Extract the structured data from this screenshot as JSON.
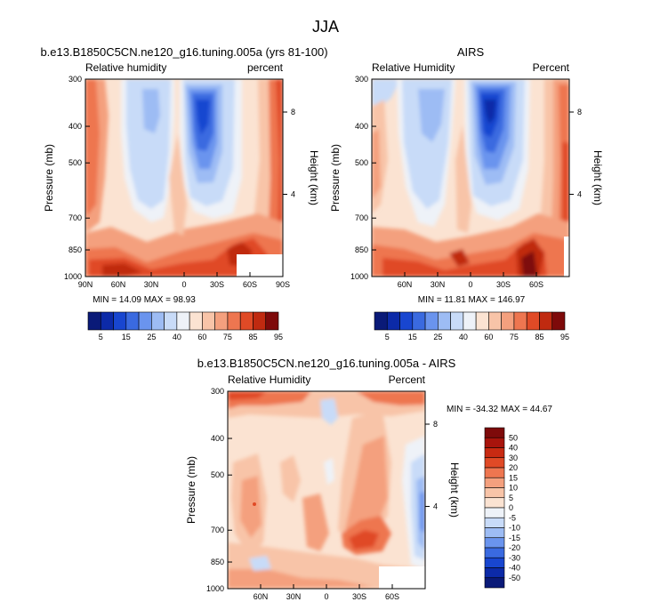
{
  "page_title": "JJA",
  "chart_data": [
    {
      "type": "heatmap",
      "title": "b.e13.B1850C5CN.ne120_g16.tuning.005a (yrs 81-100)",
      "left_label": "Relative humidity",
      "right_label": "percent",
      "ylabel": "Pressure (mb)",
      "y2label": "Height (km)",
      "x_ticks": [
        "90N",
        "60N",
        "30N",
        "0",
        "30S",
        "60S",
        "90S"
      ],
      "y_ticks": [
        "300",
        "400",
        "500",
        "700",
        "850",
        "1000"
      ],
      "y2_ticks": [
        "8",
        "4"
      ],
      "stats": "MIN = 14.09  MAX = 98.93",
      "colorbar_labels": [
        "5",
        "15",
        "25",
        "40",
        "60",
        "75",
        "85",
        "95"
      ]
    },
    {
      "type": "heatmap",
      "title": "AIRS",
      "left_label": "Relative Humidity",
      "right_label": "Percent",
      "ylabel": "Pressure (mb)",
      "y2label": "Height (km)",
      "x_ticks": [
        "60N",
        "30N",
        "0",
        "30S",
        "60S"
      ],
      "y_ticks": [
        "300",
        "400",
        "500",
        "700",
        "850",
        "1000"
      ],
      "y2_ticks": [
        "8",
        "4"
      ],
      "stats": "MIN = 11.81  MAX = 146.97",
      "colorbar_labels": [
        "5",
        "15",
        "25",
        "40",
        "60",
        "75",
        "85",
        "95"
      ]
    },
    {
      "type": "heatmap",
      "title": "b.e13.B1850C5CN.ne120_g16.tuning.005a - AIRS",
      "left_label": "Relative Humidity",
      "right_label": "Percent",
      "ylabel": "Pressure (mb)",
      "y2label": "Height (km)",
      "x_ticks": [
        "60N",
        "30N",
        "0",
        "30S",
        "60S"
      ],
      "y_ticks": [
        "300",
        "400",
        "500",
        "700",
        "850",
        "1000"
      ],
      "y2_ticks": [
        "8",
        "4"
      ],
      "stats": "MIN = -34.32  MAX =  44.67",
      "colorbar_labels": [
        "50",
        "40",
        "30",
        "20",
        "15",
        "10",
        "5",
        "0",
        "-5",
        "-10",
        "-15",
        "-20",
        "-30",
        "-40",
        "-50"
      ]
    }
  ],
  "colors": {
    "abs_levels": [
      "#0a1a78",
      "#0c2aa8",
      "#1846d0",
      "#3a6ae0",
      "#6a94ee",
      "#9dbcf4",
      "#c8dbf8",
      "#eef2f8",
      "#fbe3d2",
      "#f8c4a8",
      "#f4a07e",
      "#ee7650",
      "#e04a26",
      "#c02a10",
      "#7e0a0a"
    ],
    "diff_levels": [
      "#7e0a0a",
      "#a8140c",
      "#c82a12",
      "#e04a26",
      "#ee7650",
      "#f4a07e",
      "#f8c4a8",
      "#fbe3d2",
      "#eef2f8",
      "#c8dbf8",
      "#9dbcf4",
      "#6a94ee",
      "#3a6ae0",
      "#1846d0",
      "#0c2aa8",
      "#0a1a78"
    ]
  }
}
